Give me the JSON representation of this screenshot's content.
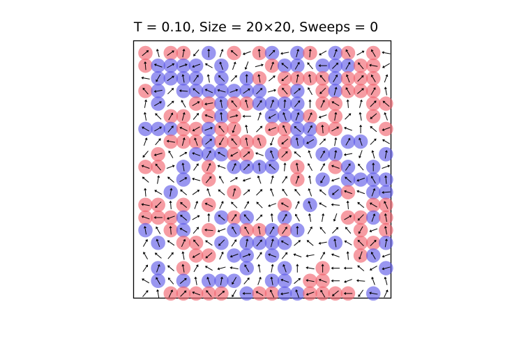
{
  "title": "T = 0.10, Size = 20×20, Sweeps = 0",
  "lattice": {
    "size": 20,
    "marked_colors": {
      "red": "#f0606a",
      "blue": "#5a56e6"
    },
    "arrow_color": "#000000",
    "grid": [
      "R.RR.B.R.RB.BR.BR.R.",
      "RBBBB.B...RBB.BBBRR.",
      ".BBBB.B.BR.RRRRBRRR.",
      "RB.BBBBBBB.RB.RBRRR.",
      ".B..RRBRRBBBB.RR..RR",
      "..RR.RBR..BBBR.R..R.",
      "BBBRRBRR..RRBBRR...R",
      "..RRRBRRRR.RBB..BB..",
      ".R..BBBRR.BR..BB...B",
      "RR.B.R.BBBB.R..RB.B.",
      "...B.R......R.B.BBBB",
      "..B....R.......BR.BB",
      "RR.R.R.....R.B....RR",
      "RRRB..BRB..B....RRBR",
      "B.RB.R.BRRBRB....R.R",
      ".B.RR.B.BBBB...B.RRB",
      "....RR.BB.B......RB.",
      ".B.R....B..B..R....B",
      ".B.B.BBB..BB.RR.....",
      "..RRRRR.BRRBBRRRR.B."
    ],
    "angles_deg": [
      [
        40,
        105,
        35,
        80,
        230,
        90,
        70,
        140,
        200,
        95,
        45,
        190,
        75,
        85,
        210,
        70,
        120,
        30,
        120,
        170
      ],
      [
        95,
        160,
        30,
        20,
        200,
        150,
        110,
        70,
        250,
        15,
        70,
        140,
        60,
        130,
        180,
        45,
        60,
        130,
        170,
        210
      ],
      [
        170,
        240,
        35,
        100,
        55,
        100,
        135,
        45,
        90,
        100,
        40,
        220,
        80,
        100,
        130,
        60,
        110,
        45,
        120,
        70
      ],
      [
        130,
        190,
        45,
        175,
        140,
        155,
        165,
        20,
        35,
        45,
        15,
        130,
        40,
        120,
        225,
        75,
        120,
        40,
        60,
        100
      ],
      [
        80,
        30,
        40,
        120,
        30,
        190,
        100,
        130,
        105,
        55,
        70,
        85,
        50,
        90,
        65,
        150,
        95,
        75,
        45,
        140
      ],
      [
        100,
        135,
        60,
        75,
        50,
        160,
        95,
        15,
        180,
        70,
        210,
        110,
        70,
        65,
        200,
        80,
        45,
        100,
        220,
        110
      ],
      [
        150,
        30,
        50,
        155,
        210,
        20,
        130,
        250,
        100,
        45,
        200,
        115,
        140,
        60,
        95,
        30,
        160,
        90,
        140,
        200
      ],
      [
        70,
        50,
        170,
        75,
        110,
        40,
        240,
        130,
        100,
        110,
        250,
        220,
        100,
        210,
        45,
        80,
        60,
        110,
        45,
        150
      ],
      [
        230,
        195,
        120,
        30,
        160,
        60,
        150,
        210,
        40,
        160,
        110,
        45,
        140,
        110,
        60,
        80,
        190,
        250,
        105,
        80
      ],
      [
        160,
        130,
        20,
        100,
        55,
        65,
        160,
        65,
        45,
        95,
        140,
        85,
        100,
        120,
        60,
        160,
        55,
        130,
        90,
        20
      ],
      [
        140,
        80,
        140,
        30,
        165,
        50,
        120,
        30,
        200,
        110,
        75,
        55,
        70,
        100,
        240,
        200,
        140,
        200,
        120,
        95
      ],
      [
        95,
        150,
        80,
        140,
        35,
        110,
        140,
        75,
        40,
        45,
        110,
        125,
        130,
        110,
        140,
        220,
        160,
        160,
        70,
        185
      ],
      [
        170,
        225,
        95,
        140,
        70,
        155,
        65,
        135,
        60,
        135,
        200,
        150,
        65,
        110,
        150,
        175,
        95,
        140,
        150,
        115
      ],
      [
        160,
        180,
        200,
        140,
        30,
        90,
        140,
        55,
        130,
        45,
        95,
        60,
        120,
        100,
        80,
        250,
        30,
        225,
        70,
        100
      ],
      [
        100,
        120,
        95,
        150,
        50,
        175,
        200,
        120,
        120,
        100,
        60,
        55,
        90,
        60,
        130,
        45,
        130,
        240,
        200,
        100
      ],
      [
        60,
        110,
        145,
        65,
        130,
        145,
        225,
        55,
        80,
        50,
        75,
        150,
        40,
        140,
        190,
        100,
        150,
        135,
        45,
        80
      ],
      [
        120,
        140,
        50,
        100,
        210,
        220,
        65,
        200,
        20,
        55,
        160,
        50,
        160,
        190,
        60,
        160,
        95,
        250,
        120,
        200
      ],
      [
        55,
        70,
        140,
        100,
        60,
        150,
        195,
        170,
        120,
        100,
        80,
        110,
        90,
        170,
        90,
        180,
        180,
        140,
        210,
        195
      ],
      [
        150,
        120,
        130,
        40,
        100,
        110,
        80,
        240,
        50,
        70,
        100,
        160,
        40,
        170,
        160,
        180,
        200,
        175,
        110,
        105
      ],
      [
        50,
        100,
        65,
        45,
        160,
        130,
        40,
        240,
        180,
        150,
        115,
        190,
        110,
        200,
        120,
        220,
        180,
        235,
        170,
        65
      ]
    ]
  }
}
